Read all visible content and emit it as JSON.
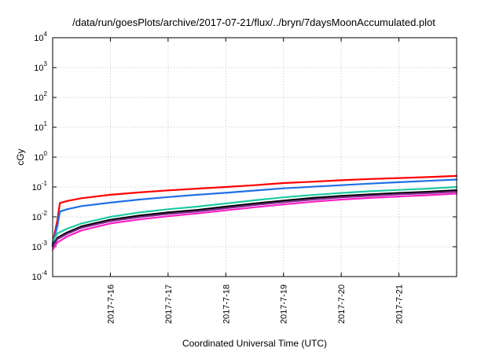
{
  "chart_data": {
    "type": "line",
    "title": "/data/run/goesPlots/archive/2017-07-21/flux/../bryn/7daysMoonAccumulated.plot",
    "xlabel": "Coordinated Universal Time (UTC)",
    "ylabel": "cGy",
    "x_type": "date",
    "xlim": [
      "2017-07-15 00:00",
      "2017-07-22 00:00"
    ],
    "ylim": [
      0.0001,
      10000
    ],
    "yscale": "log",
    "grid": true,
    "y_ticks": [
      {
        "base": "10",
        "exp": "-4",
        "value": 0.0001
      },
      {
        "base": "10",
        "exp": "-3",
        "value": 0.001
      },
      {
        "base": "10",
        "exp": "-2",
        "value": 0.01
      },
      {
        "base": "10",
        "exp": "-1",
        "value": 0.1
      },
      {
        "base": "10",
        "exp": "0",
        "value": 1
      },
      {
        "base": "10",
        "exp": "1",
        "value": 10
      },
      {
        "base": "10",
        "exp": "2",
        "value": 100
      },
      {
        "base": "10",
        "exp": "3",
        "value": 1000
      },
      {
        "base": "10",
        "exp": "4",
        "value": 10000
      }
    ],
    "x_ticks": [
      {
        "label": "2017-7-16",
        "value": "2017-07-16 00:00"
      },
      {
        "label": "2017-7-17",
        "value": "2017-07-17 00:00"
      },
      {
        "label": "2017-7-18",
        "value": "2017-07-18 00:00"
      },
      {
        "label": "2017-7-19",
        "value": "2017-07-19 00:00"
      },
      {
        "label": "2017-7-20",
        "value": "2017-07-20 00:00"
      },
      {
        "label": "2017-7-21",
        "value": "2017-07-21 00:00"
      }
    ],
    "series": [
      {
        "color": "#ff0000",
        "points": [
          [
            "2017-07-15 00:00",
            0.0013
          ],
          [
            "2017-07-15 02:00",
            0.008
          ],
          [
            "2017-07-15 03:00",
            0.029
          ],
          [
            "2017-07-15 06:00",
            0.034
          ],
          [
            "2017-07-15 12:00",
            0.042
          ],
          [
            "2017-07-16 00:00",
            0.055
          ],
          [
            "2017-07-16 12:00",
            0.066
          ],
          [
            "2017-07-17 00:00",
            0.077
          ],
          [
            "2017-07-17 12:00",
            0.088
          ],
          [
            "2017-07-18 00:00",
            0.1
          ],
          [
            "2017-07-18 12:00",
            0.115
          ],
          [
            "2017-07-19 00:00",
            0.135
          ],
          [
            "2017-07-19 12:00",
            0.15
          ],
          [
            "2017-07-20 00:00",
            0.168
          ],
          [
            "2017-07-20 12:00",
            0.185
          ],
          [
            "2017-07-21 00:00",
            0.2
          ],
          [
            "2017-07-21 12:00",
            0.215
          ],
          [
            "2017-07-22 00:00",
            0.235
          ]
        ]
      },
      {
        "color": "#1f6fe6",
        "points": [
          [
            "2017-07-15 00:00",
            0.0012
          ],
          [
            "2017-07-15 02:00",
            0.005
          ],
          [
            "2017-07-15 03:00",
            0.015
          ],
          [
            "2017-07-15 06:00",
            0.018
          ],
          [
            "2017-07-15 12:00",
            0.023
          ],
          [
            "2017-07-16 00:00",
            0.03
          ],
          [
            "2017-07-16 12:00",
            0.038
          ],
          [
            "2017-07-17 00:00",
            0.046
          ],
          [
            "2017-07-17 12:00",
            0.055
          ],
          [
            "2017-07-18 00:00",
            0.064
          ],
          [
            "2017-07-18 12:00",
            0.076
          ],
          [
            "2017-07-19 00:00",
            0.09
          ],
          [
            "2017-07-19 12:00",
            0.102
          ],
          [
            "2017-07-20 00:00",
            0.115
          ],
          [
            "2017-07-20 12:00",
            0.13
          ],
          [
            "2017-07-21 00:00",
            0.145
          ],
          [
            "2017-07-21 12:00",
            0.16
          ],
          [
            "2017-07-22 00:00",
            0.178
          ]
        ]
      },
      {
        "color": "#1fc9a2",
        "points": [
          [
            "2017-07-15 00:00",
            0.0015
          ],
          [
            "2017-07-15 02:00",
            0.0028
          ],
          [
            "2017-07-15 06:00",
            0.004
          ],
          [
            "2017-07-15 12:00",
            0.006
          ],
          [
            "2017-07-16 00:00",
            0.01
          ],
          [
            "2017-07-16 12:00",
            0.014
          ],
          [
            "2017-07-17 00:00",
            0.018
          ],
          [
            "2017-07-17 12:00",
            0.022
          ],
          [
            "2017-07-18 00:00",
            0.028
          ],
          [
            "2017-07-18 12:00",
            0.036
          ],
          [
            "2017-07-19 00:00",
            0.045
          ],
          [
            "2017-07-19 12:00",
            0.054
          ],
          [
            "2017-07-20 00:00",
            0.063
          ],
          [
            "2017-07-20 12:00",
            0.072
          ],
          [
            "2017-07-21 00:00",
            0.08
          ],
          [
            "2017-07-21 12:00",
            0.088
          ],
          [
            "2017-07-22 00:00",
            0.1
          ]
        ]
      },
      {
        "color": "#000000",
        "points": [
          [
            "2017-07-15 00:00",
            0.0011
          ],
          [
            "2017-07-15 02:00",
            0.002
          ],
          [
            "2017-07-15 06:00",
            0.003
          ],
          [
            "2017-07-15 12:00",
            0.0048
          ],
          [
            "2017-07-16 00:00",
            0.008
          ],
          [
            "2017-07-16 12:00",
            0.011
          ],
          [
            "2017-07-17 00:00",
            0.014
          ],
          [
            "2017-07-17 12:00",
            0.017
          ],
          [
            "2017-07-18 00:00",
            0.022
          ],
          [
            "2017-07-18 12:00",
            0.028
          ],
          [
            "2017-07-19 00:00",
            0.035
          ],
          [
            "2017-07-19 12:00",
            0.043
          ],
          [
            "2017-07-20 00:00",
            0.05
          ],
          [
            "2017-07-20 12:00",
            0.057
          ],
          [
            "2017-07-21 00:00",
            0.063
          ],
          [
            "2017-07-21 12:00",
            0.069
          ],
          [
            "2017-07-22 00:00",
            0.078
          ]
        ]
      },
      {
        "color": "#7a2a86",
        "points": [
          [
            "2017-07-15 00:00",
            0.001
          ],
          [
            "2017-07-15 02:00",
            0.0018
          ],
          [
            "2017-07-15 06:00",
            0.0027
          ],
          [
            "2017-07-15 12:00",
            0.0043
          ],
          [
            "2017-07-16 00:00",
            0.0072
          ],
          [
            "2017-07-16 12:00",
            0.0098
          ],
          [
            "2017-07-17 00:00",
            0.0125
          ],
          [
            "2017-07-17 12:00",
            0.0152
          ],
          [
            "2017-07-18 00:00",
            0.0195
          ],
          [
            "2017-07-18 12:00",
            0.025
          ],
          [
            "2017-07-19 00:00",
            0.031
          ],
          [
            "2017-07-19 12:00",
            0.038
          ],
          [
            "2017-07-20 00:00",
            0.045
          ],
          [
            "2017-07-20 12:00",
            0.051
          ],
          [
            "2017-07-21 00:00",
            0.057
          ],
          [
            "2017-07-21 12:00",
            0.062
          ],
          [
            "2017-07-22 00:00",
            0.07
          ]
        ]
      },
      {
        "color": "#ff1fc8",
        "points": [
          [
            "2017-07-15 00:00",
            0.0008
          ],
          [
            "2017-07-15 02:00",
            0.0014
          ],
          [
            "2017-07-15 06:00",
            0.0022
          ],
          [
            "2017-07-15 12:00",
            0.0035
          ],
          [
            "2017-07-16 00:00",
            0.006
          ],
          [
            "2017-07-16 12:00",
            0.0082
          ],
          [
            "2017-07-17 00:00",
            0.0105
          ],
          [
            "2017-07-17 12:00",
            0.013
          ],
          [
            "2017-07-18 00:00",
            0.0165
          ],
          [
            "2017-07-18 12:00",
            0.021
          ],
          [
            "2017-07-19 00:00",
            0.026
          ],
          [
            "2017-07-19 12:00",
            0.032
          ],
          [
            "2017-07-20 00:00",
            0.038
          ],
          [
            "2017-07-20 12:00",
            0.043
          ],
          [
            "2017-07-21 00:00",
            0.048
          ],
          [
            "2017-07-21 12:00",
            0.053
          ],
          [
            "2017-07-22 00:00",
            0.06
          ]
        ]
      }
    ]
  }
}
